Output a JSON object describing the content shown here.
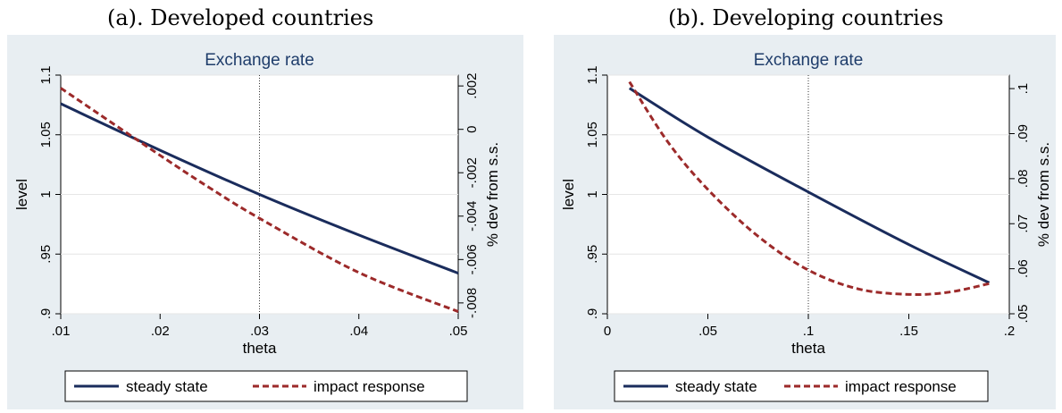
{
  "panels": [
    {
      "caption": "(a). Developed countries"
    },
    {
      "caption": "(b). Developing countries"
    }
  ],
  "style": {
    "panel_bg": "#e8eef2",
    "plot_bg": "#ffffff",
    "title_color": "#1f3d6b",
    "steady_color": "#1a2c5c",
    "impact_color": "#9c2a2a"
  },
  "chart_data": [
    {
      "type": "line",
      "title": "Exchange rate",
      "xlabel": "theta",
      "ylabel": "level",
      "y2label": "% dev from s.s.",
      "xlim": [
        0.01,
        0.05
      ],
      "ylim": [
        0.9,
        1.1
      ],
      "y2lim": [
        -0.0085,
        0.0025
      ],
      "xticks": [
        ".01",
        ".02",
        ".03",
        ".04",
        ".05"
      ],
      "xtick_values": [
        0.01,
        0.02,
        0.03,
        0.04,
        0.05
      ],
      "yticks": [
        ".9",
        ".95",
        "1",
        "1.05",
        "1.1"
      ],
      "ytick_values": [
        0.9,
        0.95,
        1.0,
        1.05,
        1.1
      ],
      "y2ticks": [
        "-.008",
        "-.006",
        "-.004",
        "-.002",
        "0",
        ".002"
      ],
      "y2tick_values": [
        -0.008,
        -0.006,
        -0.004,
        -0.002,
        0,
        0.002
      ],
      "vline": 0.03,
      "grid": true,
      "legend_position": "bottom",
      "series": [
        {
          "name": "steady state",
          "axis": "left",
          "style": "solid",
          "x": [
            0.01,
            0.02,
            0.03,
            0.04,
            0.05
          ],
          "y": [
            1.076,
            1.037,
            1.0,
            0.966,
            0.934
          ]
        },
        {
          "name": "impact response",
          "axis": "right",
          "style": "dashed",
          "x": [
            0.01,
            0.02,
            0.025,
            0.03,
            0.04,
            0.05
          ],
          "y": [
            0.0019,
            -0.0012,
            -0.0027,
            -0.0041,
            -0.0066,
            -0.0084
          ]
        }
      ]
    },
    {
      "type": "line",
      "title": "Exchange rate",
      "xlabel": "theta",
      "ylabel": "level",
      "y2label": "% dev from s.s.",
      "xlim": [
        0,
        0.2
      ],
      "ylim": [
        0.9,
        1.1
      ],
      "y2lim": [
        0.05,
        0.103
      ],
      "xticks": [
        "0",
        ".05",
        ".1",
        ".15",
        ".2"
      ],
      "xtick_values": [
        0,
        0.05,
        0.1,
        0.15,
        0.2
      ],
      "yticks": [
        ".9",
        ".95",
        "1",
        "1.05",
        "1.1"
      ],
      "ytick_values": [
        0.9,
        0.95,
        1.0,
        1.05,
        1.1
      ],
      "y2ticks": [
        ".05",
        ".06",
        ".07",
        ".08",
        ".09",
        ".1"
      ],
      "y2tick_values": [
        0.05,
        0.06,
        0.07,
        0.08,
        0.09,
        0.1
      ],
      "vline": 0.1,
      "grid": true,
      "legend_position": "bottom",
      "series": [
        {
          "name": "steady state",
          "axis": "left",
          "style": "solid",
          "x": [
            0.011,
            0.05,
            0.1,
            0.15,
            0.19
          ],
          "y": [
            1.089,
            1.048,
            1.002,
            0.958,
            0.926
          ]
        },
        {
          "name": "impact response",
          "axis": "right",
          "style": "dashed",
          "x": [
            0.011,
            0.03,
            0.05,
            0.075,
            0.1,
            0.125,
            0.15,
            0.17,
            0.19
          ],
          "y": [
            0.1015,
            0.0882,
            0.0776,
            0.0672,
            0.0597,
            0.0555,
            0.0543,
            0.0548,
            0.0567
          ]
        }
      ]
    }
  ]
}
